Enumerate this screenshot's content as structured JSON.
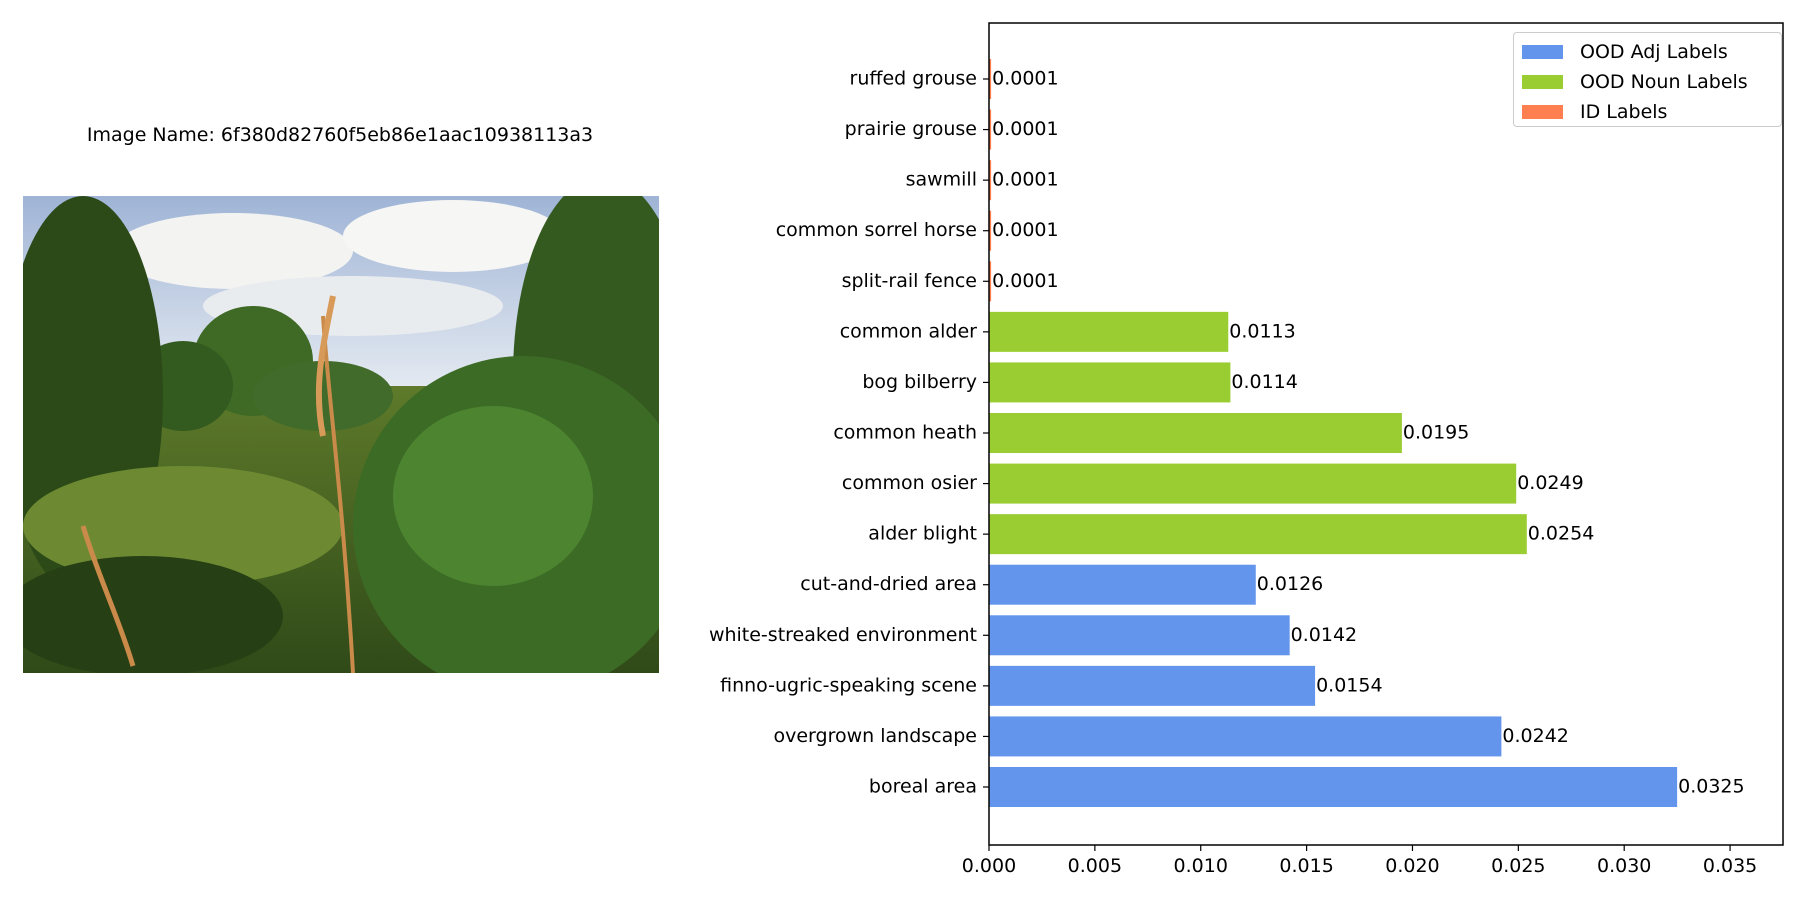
{
  "image_caption": "Image Name: 6f380d82760f5eb86e1aac10938113a3",
  "photo": {
    "description_icon": "landscape-photo-icon"
  },
  "colors": {
    "adj": "#6495ED",
    "noun": "#9ACD32",
    "id": "#FF7F50"
  },
  "legend": [
    {
      "label": "OOD Adj Labels",
      "color": "#6495ED"
    },
    {
      "label": "OOD Noun Labels",
      "color": "#9ACD32"
    },
    {
      "label": "ID Labels",
      "color": "#FF7F50"
    }
  ],
  "chart_data": {
    "type": "bar",
    "orientation": "horizontal",
    "categories": [
      "boreal area",
      "overgrown landscape",
      "finno-ugric-speaking scene",
      "white-streaked environment",
      "cut-and-dried area",
      "alder blight",
      "common osier",
      "common heath",
      "bog bilberry",
      "common alder",
      "split-rail fence",
      "common sorrel horse",
      "sawmill",
      "prairie grouse",
      "ruffed grouse"
    ],
    "values": [
      0.0325,
      0.0242,
      0.0154,
      0.0142,
      0.0126,
      0.0254,
      0.0249,
      0.0195,
      0.0114,
      0.0113,
      0.0001,
      0.0001,
      0.0001,
      0.0001,
      0.0001
    ],
    "value_labels": [
      "0.0325",
      "0.0242",
      "0.0154",
      "0.0142",
      "0.0126",
      "0.0254",
      "0.0249",
      "0.0195",
      "0.0114",
      "0.0113",
      "0.0001",
      "0.0001",
      "0.0001",
      "0.0001",
      "0.0001"
    ],
    "groups": [
      "adj",
      "adj",
      "adj",
      "adj",
      "adj",
      "noun",
      "noun",
      "noun",
      "noun",
      "noun",
      "id",
      "id",
      "id",
      "id",
      "id"
    ],
    "xlim": [
      0,
      0.0375
    ],
    "xticks": [
      "0.000",
      "0.005",
      "0.010",
      "0.015",
      "0.020",
      "0.025",
      "0.030",
      "0.035"
    ],
    "xtick_values": [
      0,
      0.005,
      0.01,
      0.015,
      0.02,
      0.025,
      0.03,
      0.035
    ],
    "legend_position": "top-right",
    "grid": false
  }
}
